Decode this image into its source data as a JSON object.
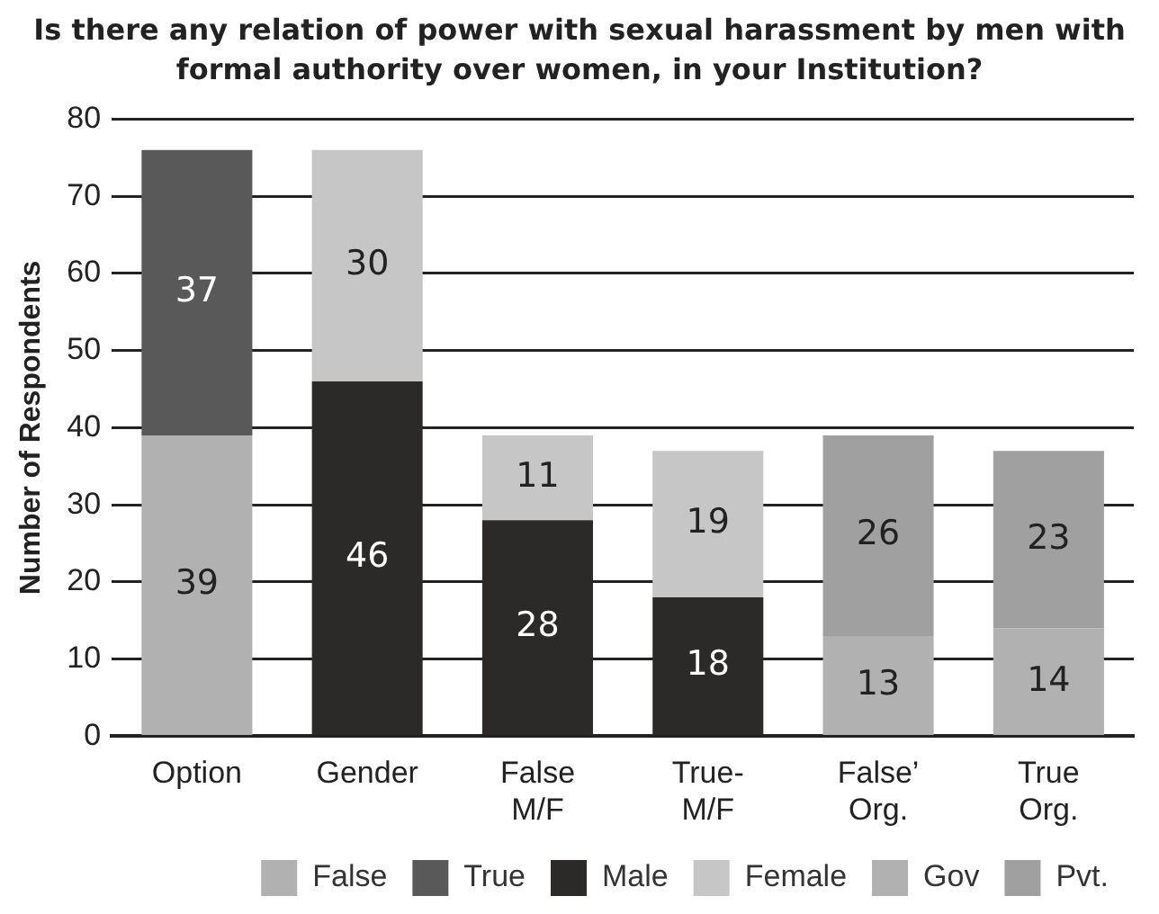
{
  "chart_data": {
    "type": "bar",
    "title": "Is there any relation of power with sexual harassment by men with formal authority over women, in your Institution?",
    "ylabel": "Number of Respondents",
    "categories": [
      "Option",
      "Gender",
      "False M/F",
      "True-M/F",
      "False’ Org.",
      "True Org."
    ],
    "stacked": true,
    "series": [
      {
        "name": "False",
        "color": "#b0b1b0",
        "values": [
          39,
          null,
          null,
          null,
          null,
          null
        ]
      },
      {
        "name": "True",
        "color": "#595959",
        "values": [
          37,
          null,
          null,
          null,
          null,
          null
        ]
      },
      {
        "name": "Male",
        "color": "#2b2a28",
        "values": [
          null,
          46,
          28,
          18,
          null,
          null
        ]
      },
      {
        "name": "Female",
        "color": "#c5c6c5",
        "values": [
          null,
          30,
          11,
          19,
          null,
          null
        ]
      },
      {
        "name": "Gov",
        "color": "#b1b1b1",
        "values": [
          null,
          null,
          null,
          null,
          13,
          14
        ]
      },
      {
        "name": "Pvt.",
        "color": "#9fa09f",
        "values": [
          null,
          null,
          null,
          null,
          26,
          23
        ]
      }
    ],
    "ylim": [
      0,
      80
    ],
    "yticks": [
      0,
      10,
      20,
      30,
      40,
      50,
      60,
      70,
      80
    ],
    "grid": "y",
    "legend": "bottom",
    "data_labels": true
  }
}
